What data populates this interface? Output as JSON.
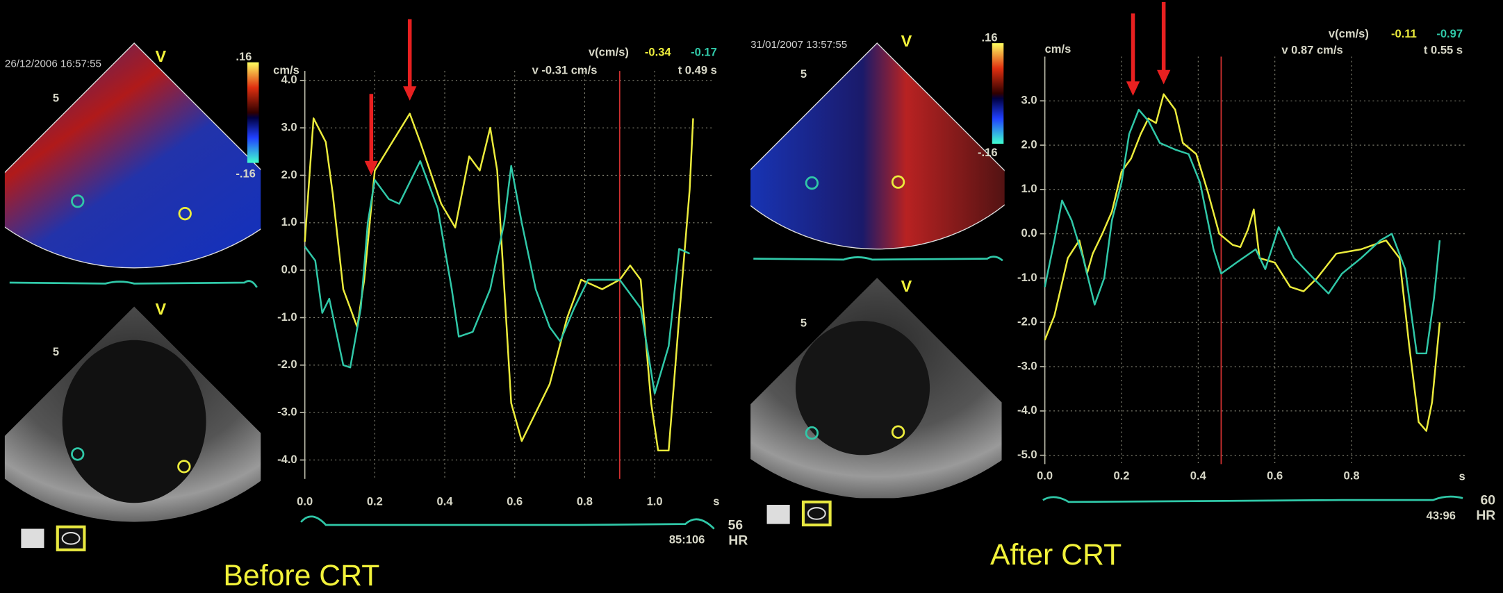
{
  "chart_data": [
    {
      "type": "line",
      "title": "Before CRT",
      "timestamp": "26/12/2006 16:57:55",
      "view_label": "V",
      "depth_label": "5",
      "color_scale": [
        ".16",
        "-.16"
      ],
      "y_label": "cm/s",
      "x_label": "s",
      "readout": {
        "label": "v(cm/s)",
        "values": [
          -0.34,
          -0.17
        ],
        "velocity": "v -0.31 cm/s",
        "time": "t 0.49 s"
      },
      "heart_rate": 56,
      "hr_label": "HR",
      "frames": "85:106",
      "xlim": [
        0,
        1.17
      ],
      "ylim": [
        -4.4,
        4.2
      ],
      "xticks": [
        {
          "value": 0,
          "label": "0.0"
        },
        0.2,
        0.4,
        0.6,
        0.8,
        {
          "value": 1,
          "label": "1.0"
        }
      ],
      "yticks": [
        {
          "value": 4,
          "label": "4.0"
        },
        {
          "value": 3,
          "label": "3.0"
        },
        {
          "value": 2,
          "label": "2.0"
        },
        {
          "value": 1,
          "label": "1.0"
        },
        {
          "value": 0,
          "label": "0.0"
        },
        {
          "value": -1,
          "label": "-1.0"
        },
        {
          "value": -2,
          "label": "-2.0"
        },
        {
          "value": -3,
          "label": "-3.0"
        },
        {
          "value": -4,
          "label": "-4.0"
        }
      ],
      "grid": true,
      "cursor_x": 0.9,
      "cursor_color": "#d03030",
      "arrows_x": [
        0.19,
        0.3
      ],
      "arrow_color": "#e82020",
      "series": [
        {
          "color": "#ecec3c",
          "x": [
            0,
            0.025,
            0.06,
            0.08,
            0.11,
            0.13,
            0.15,
            0.17,
            0.2,
            0.25,
            0.3,
            0.33,
            0.39,
            0.43,
            0.47,
            0.5,
            0.53,
            0.55,
            0.59,
            0.62,
            0.66,
            0.7,
            0.75,
            0.79,
            0.85,
            0.9,
            0.93,
            0.96,
            0.99,
            1.01,
            1.04,
            1.07,
            1.1,
            1.11
          ],
          "values": [
            0.6,
            3.2,
            2.7,
            1.6,
            -0.4,
            -0.8,
            -1.2,
            -0.2,
            2.1,
            2.7,
            3.3,
            2.7,
            1.4,
            0.9,
            2.4,
            2.1,
            3.0,
            2.1,
            -2.8,
            -3.6,
            -3.0,
            -2.4,
            -1.0,
            -0.2,
            -0.4,
            -0.2,
            0.1,
            -0.2,
            -2.8,
            -3.8,
            -3.8,
            -1.0,
            1.7,
            3.2
          ]
        },
        {
          "color": "#30c8a8",
          "x": [
            0,
            0.03,
            0.05,
            0.07,
            0.11,
            0.13,
            0.16,
            0.18,
            0.2,
            0.24,
            0.27,
            0.33,
            0.38,
            0.42,
            0.44,
            0.48,
            0.53,
            0.57,
            0.59,
            0.62,
            0.66,
            0.7,
            0.73,
            0.77,
            0.81,
            0.9,
            0.96,
            1.0,
            1.04,
            1.07,
            1.1
          ],
          "values": [
            0.5,
            0.2,
            -0.9,
            -0.6,
            -2.0,
            -2.05,
            -0.8,
            1.0,
            1.9,
            1.5,
            1.4,
            2.3,
            1.3,
            -0.4,
            -1.4,
            -1.3,
            -0.4,
            1.0,
            2.2,
            1.0,
            -0.4,
            -1.2,
            -1.5,
            -0.8,
            -0.2,
            -0.2,
            -0.8,
            -2.6,
            -1.6,
            0.45,
            0.35
          ]
        }
      ]
    },
    {
      "type": "line",
      "title": "After CRT",
      "timestamp": "31/01/2007 13:57:55",
      "view_label": "V",
      "depth_label": "5",
      "color_scale": [
        ".16",
        "-.16"
      ],
      "y_label": "cm/s",
      "x_label": "s",
      "readout": {
        "label": "v(cm/s)",
        "values": [
          -0.11,
          -0.97
        ],
        "velocity": "v 0.87 cm/s",
        "time": "t 0.55 s"
      },
      "heart_rate": 60,
      "hr_label": "HR",
      "frames": "43:96",
      "xlim": [
        0,
        1.1
      ],
      "ylim": [
        -5.2,
        4.0
      ],
      "xticks": [
        {
          "value": 0,
          "label": "0.0"
        },
        0.2,
        0.4,
        0.6,
        0.8
      ],
      "yticks": [
        {
          "value": 3,
          "label": "3.0"
        },
        {
          "value": 2,
          "label": "2.0"
        },
        {
          "value": 1,
          "label": "1.0"
        },
        {
          "value": 0,
          "label": "0.0"
        },
        {
          "value": -1,
          "label": "-1.0"
        },
        {
          "value": -2,
          "label": "-2.0"
        },
        {
          "value": -3,
          "label": "-3.0"
        },
        {
          "value": -4,
          "label": "-4.0"
        },
        {
          "value": -5,
          "label": "-5.0"
        }
      ],
      "grid": true,
      "cursor_x": 0.46,
      "cursor_color": "#d03030",
      "arrows_x": [
        0.23,
        0.31
      ],
      "arrow_color": "#e82020",
      "series": [
        {
          "color": "#ecec3c",
          "x": [
            0,
            0.025,
            0.06,
            0.09,
            0.11,
            0.125,
            0.15,
            0.175,
            0.2,
            0.225,
            0.25,
            0.27,
            0.29,
            0.31,
            0.34,
            0.36,
            0.395,
            0.425,
            0.455,
            0.49,
            0.51,
            0.53,
            0.545,
            0.56,
            0.6,
            0.64,
            0.675,
            0.71,
            0.76,
            0.825,
            0.89,
            0.925,
            0.95,
            0.975,
            0.995,
            1.01,
            1.03
          ],
          "values": [
            -2.4,
            -1.85,
            -0.55,
            -0.15,
            -0.9,
            -0.45,
            0,
            0.5,
            1.4,
            1.7,
            2.25,
            2.6,
            2.5,
            3.15,
            2.8,
            2.05,
            1.8,
            0.95,
            0,
            -0.25,
            -0.3,
            0.1,
            0.55,
            -0.55,
            -0.65,
            -1.2,
            -1.3,
            -1.0,
            -0.45,
            -0.35,
            -0.15,
            -0.55,
            -2.5,
            -4.25,
            -4.45,
            -3.8,
            -2.0
          ]
        },
        {
          "color": "#30c8a8",
          "x": [
            0,
            0.025,
            0.045,
            0.07,
            0.1,
            0.13,
            0.155,
            0.175,
            0.2,
            0.22,
            0.245,
            0.27,
            0.3,
            0.34,
            0.375,
            0.405,
            0.44,
            0.46,
            0.5,
            0.55,
            0.575,
            0.61,
            0.65,
            0.7,
            0.74,
            0.775,
            0.825,
            0.875,
            0.905,
            0.94,
            0.97,
            0.995,
            1.015,
            1.03
          ],
          "values": [
            -1.2,
            -0.15,
            0.75,
            0.3,
            -0.55,
            -1.6,
            -1.0,
            0.3,
            1.15,
            2.25,
            2.8,
            2.55,
            2.05,
            1.9,
            1.8,
            1.15,
            -0.35,
            -0.9,
            -0.65,
            -0.35,
            -0.8,
            0.15,
            -0.55,
            -1.0,
            -1.35,
            -0.9,
            -0.55,
            -0.15,
            0,
            -0.8,
            -2.7,
            -2.7,
            -1.45,
            -0.15
          ]
        }
      ]
    }
  ]
}
